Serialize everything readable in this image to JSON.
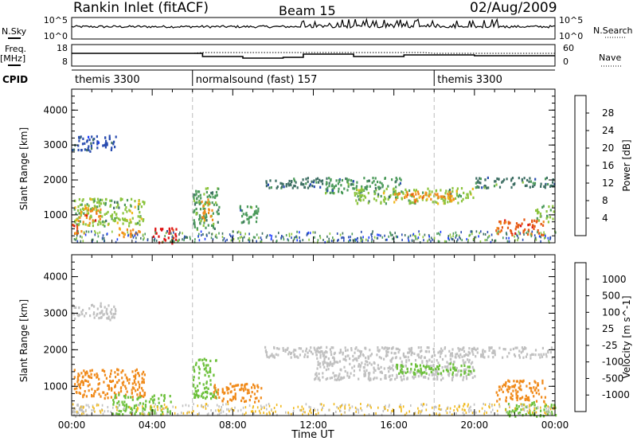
{
  "header": {
    "title": "Rankin Inlet (fitACF)",
    "beam": "Beam 15",
    "date": "02/Aug/2009"
  },
  "strip_labels": {
    "nsky": "N.Sky",
    "nsearch": "N.Search",
    "freq_top": "Freq.",
    "freq_unit": "[MHz]",
    "nave": "Nave",
    "cpid": "CPID",
    "noise_hi": "10^5",
    "noise_lo": "10^0",
    "freq_hi": "18",
    "freq_lo": "8",
    "nave_hi": "60",
    "nave_lo": "0"
  },
  "cpid_segments": [
    {
      "label": "themis 3300",
      "start_hour": 0
    },
    {
      "label": "normalsound (fast) 157",
      "start_hour": 6
    },
    {
      "label": "themis 3300",
      "start_hour": 18
    }
  ],
  "colors": {
    "power_scale": [
      "#1a3cff",
      "#2a4db0",
      "#3d6e63",
      "#4b9a5a",
      "#8cc43e",
      "#f0b81a",
      "#f08a1a",
      "#e65a14",
      "#dd1212"
    ],
    "velocity_scale": [
      "#2340c8",
      "#2d6db0",
      "#3a8a4a",
      "#6cc03a",
      "#c0c0c0",
      "#f0b81a",
      "#f08a1a",
      "#e55a14",
      "#dd1212"
    ]
  },
  "chart_data": [
    {
      "type": "heatmap",
      "title": "Power",
      "xlabel": "Time UT",
      "ylabel": "Slant Range [km]",
      "xlim": [
        0,
        24
      ],
      "ylim": [
        200,
        4600
      ],
      "x_ticks": [
        "00:00",
        "04:00",
        "08:00",
        "12:00",
        "16:00",
        "20:00",
        "00:00"
      ],
      "y_ticks": [
        1000,
        2000,
        3000,
        4000
      ],
      "colorbar": {
        "label": "Power [dB]",
        "ticks": [
          4,
          8,
          12,
          16,
          20,
          24,
          28
        ],
        "range": [
          0,
          30
        ]
      },
      "regions": [
        {
          "t0": 0.0,
          "t1": 2.2,
          "r0": 2850,
          "r1": 3300,
          "value": 6
        },
        {
          "t0": 0.1,
          "t1": 3.6,
          "r0": 700,
          "r1": 1500,
          "value": 14
        },
        {
          "t0": 0.3,
          "t1": 1.4,
          "r0": 800,
          "r1": 1250,
          "value": 22
        },
        {
          "t0": 0.0,
          "t1": 0.6,
          "r0": 450,
          "r1": 750,
          "value": 24
        },
        {
          "t0": 2.1,
          "t1": 3.4,
          "r0": 400,
          "r1": 650,
          "value": 22
        },
        {
          "t0": 4.0,
          "t1": 5.2,
          "r0": 200,
          "r1": 650,
          "value": 29
        },
        {
          "t0": 6.0,
          "t1": 7.3,
          "r0": 600,
          "r1": 1800,
          "value": 12
        },
        {
          "t0": 6.4,
          "t1": 7.0,
          "r0": 850,
          "r1": 1500,
          "value": 20
        },
        {
          "t0": 8.2,
          "t1": 9.3,
          "r0": 800,
          "r1": 1300,
          "value": 10
        },
        {
          "t0": 9.5,
          "t1": 12.5,
          "r0": 1800,
          "r1": 2100,
          "value": 8
        },
        {
          "t0": 12.5,
          "t1": 16.5,
          "r0": 1650,
          "r1": 2100,
          "value": 10
        },
        {
          "t0": 14.0,
          "t1": 20.0,
          "r0": 1350,
          "r1": 1800,
          "value": 14
        },
        {
          "t0": 16.0,
          "t1": 19.0,
          "r0": 1400,
          "r1": 1700,
          "value": 20
        },
        {
          "t0": 20.0,
          "t1": 24.0,
          "r0": 1800,
          "r1": 2100,
          "value": 9
        },
        {
          "t0": 21.0,
          "t1": 23.5,
          "r0": 450,
          "r1": 900,
          "value": 24
        },
        {
          "t0": 23.0,
          "t1": 24.0,
          "r0": 800,
          "r1": 1300,
          "value": 14
        }
      ]
    },
    {
      "type": "heatmap",
      "title": "Velocity",
      "xlabel": "Time UT",
      "ylabel": "Slant Range [km]",
      "xlim": [
        0,
        24
      ],
      "ylim": [
        200,
        4600
      ],
      "x_ticks": [
        "00:00",
        "04:00",
        "08:00",
        "12:00",
        "16:00",
        "20:00",
        "00:00"
      ],
      "y_ticks": [
        1000,
        2000,
        3000,
        4000
      ],
      "colorbar": {
        "label": "Velocity [m s^-1]",
        "ticks": [
          "1000",
          "500",
          "100",
          "25",
          "-25",
          "-100",
          "-500",
          "-1000"
        ]
      },
      "regions": [
        {
          "t0": 0.0,
          "t1": 2.2,
          "r0": 2850,
          "r1": 3300,
          "value": "25"
        },
        {
          "t0": 0.1,
          "t1": 3.6,
          "r0": 700,
          "r1": 1500,
          "value": "-100"
        },
        {
          "t0": 0.0,
          "t1": 0.6,
          "r0": 200,
          "r1": 600,
          "value": "25"
        },
        {
          "t0": 2.0,
          "t1": 5.0,
          "r0": 250,
          "r1": 800,
          "value": "100"
        },
        {
          "t0": 6.0,
          "t1": 7.2,
          "r0": 700,
          "r1": 1800,
          "value": "100"
        },
        {
          "t0": 7.0,
          "t1": 9.5,
          "r0": 600,
          "r1": 1100,
          "value": "-100"
        },
        {
          "t0": 9.5,
          "t1": 12.5,
          "r0": 1800,
          "r1": 2100,
          "value": "25"
        },
        {
          "t0": 12.0,
          "t1": 20.0,
          "r0": 1200,
          "r1": 2100,
          "value": "25"
        },
        {
          "t0": 16.0,
          "t1": 20.0,
          "r0": 1350,
          "r1": 1650,
          "value": "100"
        },
        {
          "t0": 20.0,
          "t1": 24.0,
          "r0": 1800,
          "r1": 2100,
          "value": "25"
        },
        {
          "t0": 21.0,
          "t1": 23.5,
          "r0": 600,
          "r1": 1200,
          "value": "-100"
        },
        {
          "t0": 21.5,
          "t1": 24.0,
          "r0": 200,
          "r1": 600,
          "value": "100"
        }
      ]
    }
  ]
}
